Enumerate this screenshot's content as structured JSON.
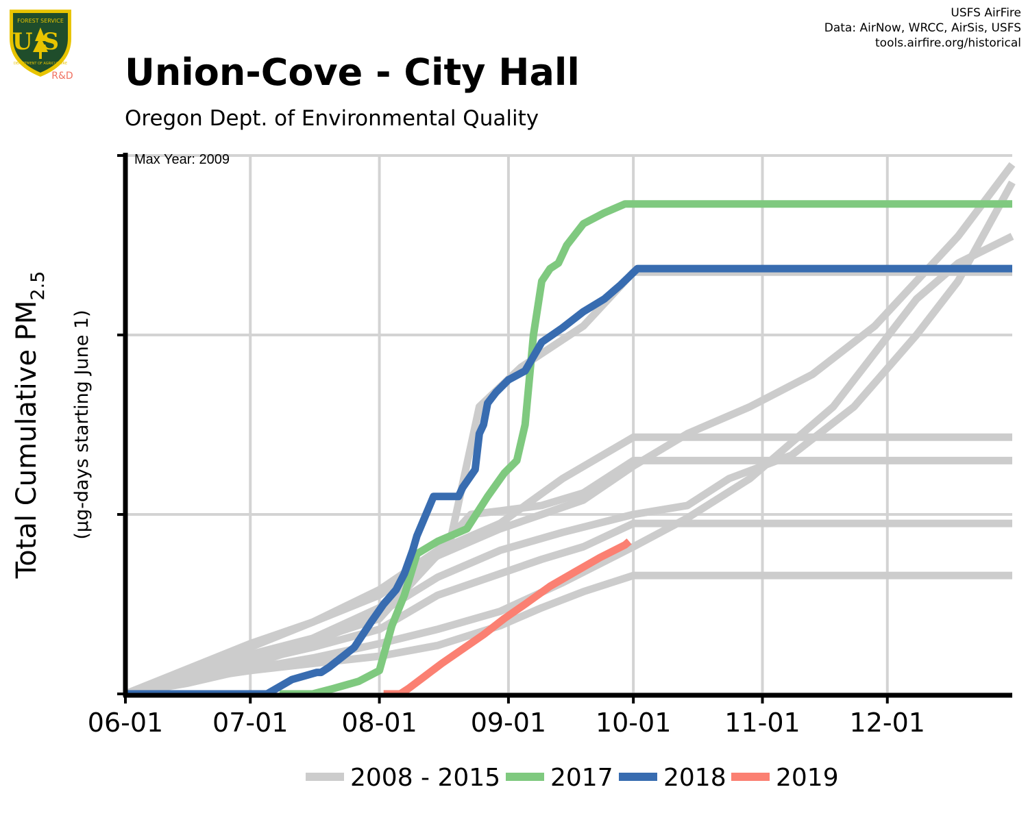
{
  "header": {
    "title": "Union-Cove - City Hall",
    "subtitle": "Oregon Dept. of Environmental Quality",
    "credits": [
      "USFS AirFire",
      "Data: AirNow, WRCC, AirSis, USFS",
      "tools.airfire.org/historical"
    ]
  },
  "logo": {
    "text_top": "FOREST SERVICE",
    "text_main": "US",
    "text_bottom": "DEPARTMENT OF AGRICULTURE",
    "badge": "R&D",
    "colors": {
      "shield": "#1f4d2b",
      "trim": "#e8c400",
      "badge": "#f07060"
    }
  },
  "chart_data": {
    "type": "line",
    "xlabel": "",
    "ylabel": "Total Cumulative PM",
    "ylabel_subscript": "2.5",
    "ylabel_sub": "(µg-days starting June 1)",
    "annotation": "Max Year: 2009",
    "x_ticks": [
      {
        "label": "06-01",
        "day": 0
      },
      {
        "label": "07-01",
        "day": 30
      },
      {
        "label": "08-01",
        "day": 61
      },
      {
        "label": "09-01",
        "day": 92
      },
      {
        "label": "10-01",
        "day": 122
      },
      {
        "label": "11-01",
        "day": 153
      },
      {
        "label": "12-01",
        "day": 183
      }
    ],
    "xlim": [
      0,
      213
    ],
    "ylim": [
      0,
      3
    ],
    "y_gridlines": [
      0,
      1,
      2,
      3
    ],
    "grid": true,
    "legend_position": "bottom",
    "series": [
      {
        "name": "2008 - 2015",
        "group": "historical",
        "color": "#cccccc",
        "points": [
          [
            0,
            0
          ],
          [
            15,
            0.12
          ],
          [
            30,
            0.22
          ],
          [
            45,
            0.31
          ],
          [
            61,
            0.48
          ],
          [
            75,
            0.8
          ],
          [
            83,
            1.0
          ],
          [
            90,
            1.02
          ],
          [
            100,
            1.05
          ],
          [
            110,
            1.12
          ],
          [
            122,
            1.3
          ],
          [
            213,
            1.3
          ]
        ]
      },
      {
        "name": "2008 - 2015",
        "group": "historical",
        "color": "#cccccc",
        "points": [
          [
            0,
            0
          ],
          [
            15,
            0.1
          ],
          [
            30,
            0.18
          ],
          [
            45,
            0.26
          ],
          [
            61,
            0.36
          ],
          [
            75,
            0.55
          ],
          [
            90,
            0.67
          ],
          [
            100,
            0.75
          ],
          [
            110,
            0.82
          ],
          [
            122,
            0.95
          ],
          [
            213,
            0.95
          ]
        ]
      },
      {
        "name": "2008 - 2015",
        "group": "historical",
        "color": "#cccccc",
        "points": [
          [
            0,
            0
          ],
          [
            15,
            0.08
          ],
          [
            30,
            0.13
          ],
          [
            45,
            0.17
          ],
          [
            61,
            0.21
          ],
          [
            75,
            0.27
          ],
          [
            90,
            0.38
          ],
          [
            100,
            0.48
          ],
          [
            110,
            0.57
          ],
          [
            122,
            0.66
          ],
          [
            213,
            0.66
          ]
        ]
      },
      {
        "name": "2008 - 2015",
        "group": "historical",
        "color": "#cccccc",
        "points": [
          [
            0,
            0
          ],
          [
            15,
            0.11
          ],
          [
            30,
            0.2
          ],
          [
            45,
            0.3
          ],
          [
            61,
            0.42
          ],
          [
            70,
            0.65
          ],
          [
            78,
            0.85
          ],
          [
            85,
            1.6
          ],
          [
            95,
            1.82
          ],
          [
            110,
            2.05
          ],
          [
            122,
            2.35
          ],
          [
            213,
            2.35
          ]
        ]
      },
      {
        "name": "2008 - 2015",
        "group": "historical",
        "color": "#cccccc",
        "points": [
          [
            0,
            0
          ],
          [
            15,
            0.13
          ],
          [
            30,
            0.26
          ],
          [
            45,
            0.4
          ],
          [
            61,
            0.58
          ],
          [
            75,
            0.8
          ],
          [
            90,
            0.95
          ],
          [
            105,
            1.2
          ],
          [
            122,
            1.43
          ],
          [
            213,
            1.43
          ]
        ]
      },
      {
        "name": "2008 - 2015",
        "group": "historical",
        "color": "#cccccc",
        "points": [
          [
            0,
            0
          ],
          [
            15,
            0.14
          ],
          [
            30,
            0.28
          ],
          [
            45,
            0.4
          ],
          [
            61,
            0.55
          ],
          [
            75,
            0.77
          ],
          [
            90,
            0.92
          ],
          [
            100,
            1.0
          ],
          [
            110,
            1.08
          ],
          [
            122,
            1.27
          ],
          [
            135,
            1.45
          ],
          [
            150,
            1.6
          ],
          [
            165,
            1.78
          ],
          [
            180,
            2.05
          ],
          [
            200,
            2.55
          ],
          [
            213,
            2.95
          ]
        ]
      },
      {
        "name": "2008 - 2015",
        "group": "historical",
        "color": "#cccccc",
        "points": [
          [
            0,
            0
          ],
          [
            15,
            0.08
          ],
          [
            30,
            0.16
          ],
          [
            45,
            0.28
          ],
          [
            61,
            0.45
          ],
          [
            75,
            0.65
          ],
          [
            90,
            0.8
          ],
          [
            105,
            0.9
          ],
          [
            122,
            1.0
          ],
          [
            135,
            1.05
          ],
          [
            145,
            1.2
          ],
          [
            160,
            1.33
          ],
          [
            175,
            1.6
          ],
          [
            190,
            2.0
          ],
          [
            200,
            2.3
          ],
          [
            213,
            2.85
          ]
        ]
      },
      {
        "name": "2008 - 2015",
        "group": "historical",
        "color": "#cccccc",
        "points": [
          [
            0,
            0
          ],
          [
            15,
            0.06
          ],
          [
            30,
            0.14
          ],
          [
            45,
            0.2
          ],
          [
            61,
            0.28
          ],
          [
            75,
            0.36
          ],
          [
            90,
            0.46
          ],
          [
            105,
            0.62
          ],
          [
            122,
            0.82
          ],
          [
            135,
            0.98
          ],
          [
            150,
            1.2
          ],
          [
            160,
            1.4
          ],
          [
            170,
            1.6
          ],
          [
            180,
            1.9
          ],
          [
            190,
            2.2
          ],
          [
            200,
            2.4
          ],
          [
            213,
            2.55
          ]
        ]
      },
      {
        "name": "2017",
        "color": "#7fc97f",
        "points": [
          [
            37,
            0
          ],
          [
            45,
            0
          ],
          [
            50,
            0.03
          ],
          [
            56,
            0.07
          ],
          [
            61,
            0.13
          ],
          [
            64,
            0.38
          ],
          [
            67,
            0.55
          ],
          [
            70,
            0.78
          ],
          [
            75,
            0.85
          ],
          [
            82,
            0.92
          ],
          [
            87,
            1.1
          ],
          [
            91,
            1.23
          ],
          [
            94,
            1.3
          ],
          [
            96,
            1.5
          ],
          [
            98,
            2.0
          ],
          [
            100,
            2.3
          ],
          [
            102,
            2.37
          ],
          [
            104,
            2.4
          ],
          [
            106,
            2.5
          ],
          [
            110,
            2.62
          ],
          [
            115,
            2.68
          ],
          [
            120,
            2.73
          ],
          [
            213,
            2.73
          ]
        ]
      },
      {
        "name": "2018",
        "color": "#386cb0",
        "points": [
          [
            0,
            0
          ],
          [
            34,
            0
          ],
          [
            40,
            0.08
          ],
          [
            46,
            0.12
          ],
          [
            47,
            0.12
          ],
          [
            49,
            0.15
          ],
          [
            55,
            0.26
          ],
          [
            59,
            0.4
          ],
          [
            62,
            0.5
          ],
          [
            65,
            0.58
          ],
          [
            67,
            0.67
          ],
          [
            69,
            0.8
          ],
          [
            70,
            0.88
          ],
          [
            74,
            1.1
          ],
          [
            75,
            1.1
          ],
          [
            76,
            1.1
          ],
          [
            80,
            1.1
          ],
          [
            81,
            1.15
          ],
          [
            84,
            1.25
          ],
          [
            85,
            1.45
          ],
          [
            86,
            1.5
          ],
          [
            87,
            1.62
          ],
          [
            89,
            1.68
          ],
          [
            92,
            1.75
          ],
          [
            96,
            1.8
          ],
          [
            100,
            1.96
          ],
          [
            105,
            2.04
          ],
          [
            110,
            2.13
          ],
          [
            115,
            2.2
          ],
          [
            119,
            2.28
          ],
          [
            123,
            2.37
          ],
          [
            213,
            2.37
          ]
        ]
      },
      {
        "name": "2019",
        "color": "#fb8072",
        "points": [
          [
            62,
            0
          ],
          [
            66,
            0
          ],
          [
            68,
            0.03
          ],
          [
            72,
            0.1
          ],
          [
            76,
            0.17
          ],
          [
            81,
            0.25
          ],
          [
            86,
            0.33
          ],
          [
            91,
            0.42
          ],
          [
            96,
            0.5
          ],
          [
            102,
            0.6
          ],
          [
            108,
            0.68
          ],
          [
            114,
            0.76
          ],
          [
            120,
            0.83
          ],
          [
            121,
            0.85
          ]
        ]
      }
    ],
    "legend": [
      {
        "label": "2008 - 2015",
        "color": "#cccccc"
      },
      {
        "label": "2017",
        "color": "#7fc97f"
      },
      {
        "label": "2018",
        "color": "#386cb0"
      },
      {
        "label": "2019",
        "color": "#fb8072"
      }
    ]
  }
}
